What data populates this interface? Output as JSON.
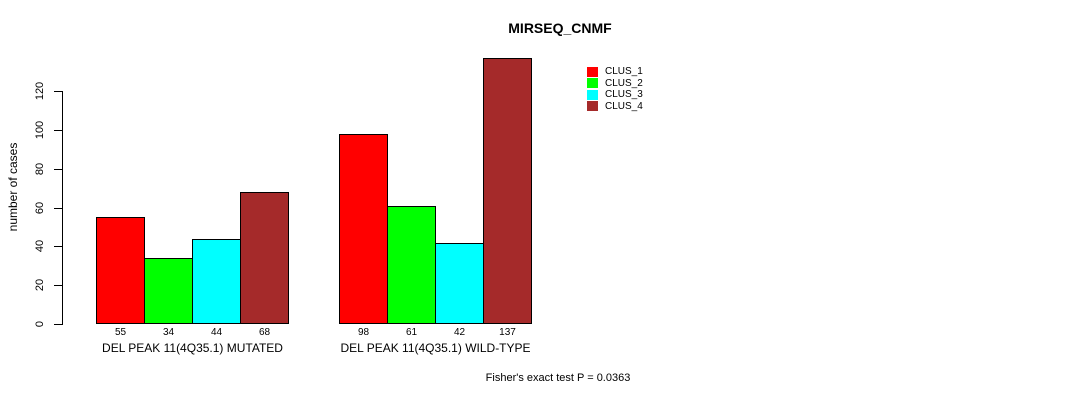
{
  "chart_data": {
    "type": "bar",
    "title": "MIRSEQ_CNMF",
    "ylabel": "number of cases",
    "xlabel": "",
    "footnote": "Fisher's exact test P = 0.0363",
    "yticks": [
      0,
      20,
      40,
      60,
      80,
      100,
      120
    ],
    "ylim": [
      0,
      137
    ],
    "grid": false,
    "legend_position": "top-right",
    "bar_value_labels": true,
    "categories": [
      "DEL PEAK 11(4Q35.1) MUTATED",
      "DEL PEAK 11(4Q35.1) WILD-TYPE"
    ],
    "series": [
      {
        "name": "CLUS_1",
        "color": "#ff0000",
        "values": [
          55,
          98
        ]
      },
      {
        "name": "CLUS_2",
        "color": "#00ff00",
        "values": [
          34,
          61
        ]
      },
      {
        "name": "CLUS_3",
        "color": "#00ffff",
        "values": [
          44,
          42
        ]
      },
      {
        "name": "CLUS_4",
        "color": "#a52a2a",
        "values": [
          68,
          137
        ]
      }
    ],
    "legend": [
      {
        "label": "CLUS_1",
        "color": "#ff0000"
      },
      {
        "label": "CLUS_2",
        "color": "#00ff00"
      },
      {
        "label": "CLUS_3",
        "color": "#00ffff"
      },
      {
        "label": "CLUS_4",
        "color": "#a52a2a"
      }
    ]
  }
}
